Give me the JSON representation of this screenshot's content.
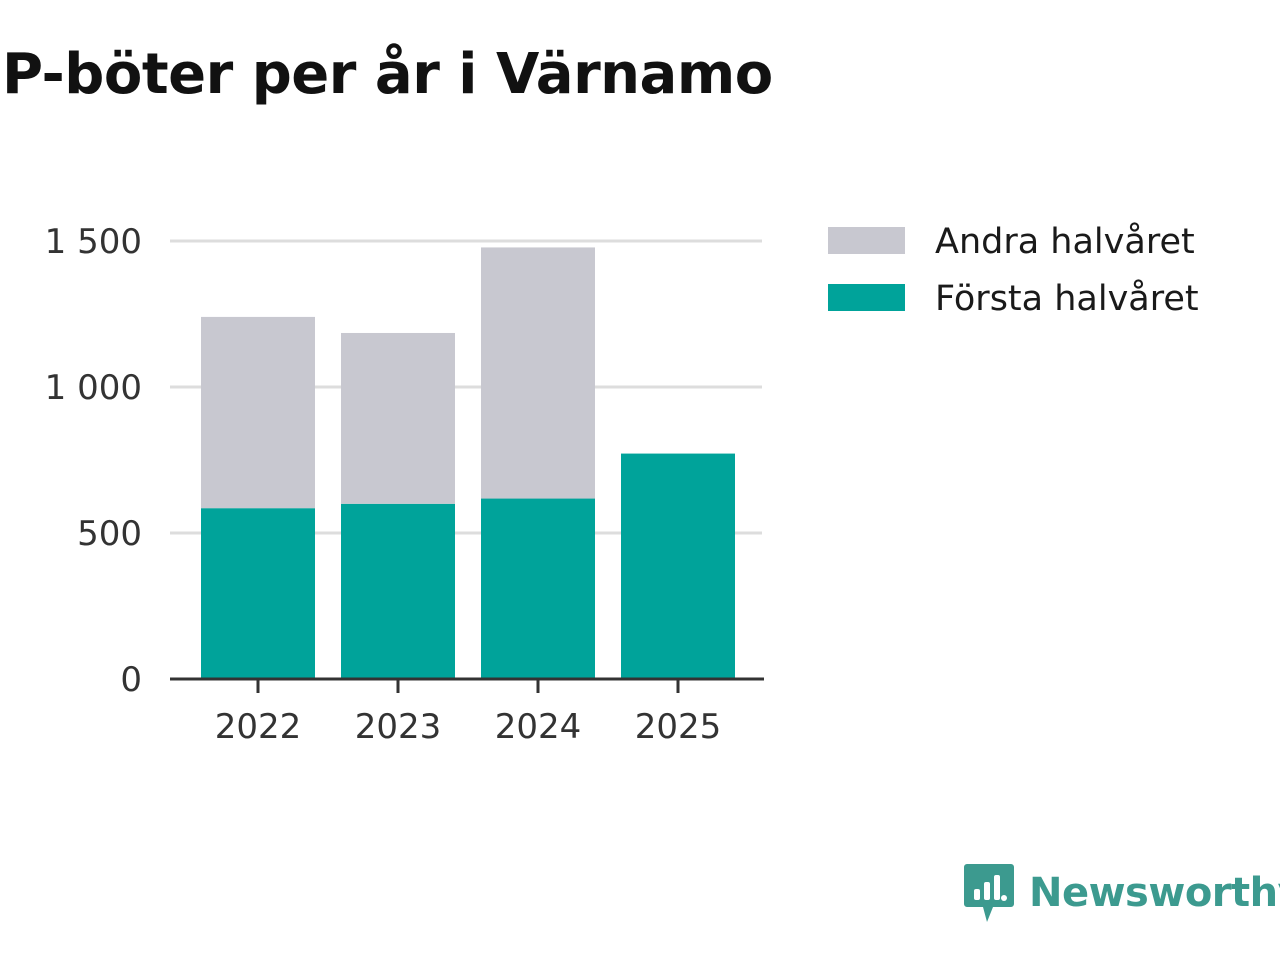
{
  "chart_data": {
    "type": "bar",
    "stacked": true,
    "title": "P-böter per år i Värnamo",
    "categories": [
      "2022",
      "2023",
      "2024",
      "2025"
    ],
    "series": [
      {
        "name": "Första halvåret",
        "color": "#00a39a",
        "values": [
          585,
          600,
          618,
          772
        ]
      },
      {
        "name": "Andra halvåret",
        "color": "#c8c8d0",
        "values": [
          655,
          585,
          860,
          null
        ]
      }
    ],
    "ylim": [
      0,
      1500
    ],
    "yticks": [
      0,
      500,
      1000,
      1500
    ],
    "ytick_labels": [
      "0",
      "500",
      "1 000",
      "1 500"
    ],
    "xlabel": "",
    "ylabel": "",
    "grid": true,
    "legend": [
      {
        "label": "Andra halvåret",
        "color": "#c8c8d0"
      },
      {
        "label": "Första halvåret",
        "color": "#00a39a"
      }
    ],
    "legend_position": "right"
  },
  "branding": {
    "logo_text": "Newsworthy",
    "logo_icon": "newsworthy-logo-icon",
    "color": "#3c9a8f"
  }
}
